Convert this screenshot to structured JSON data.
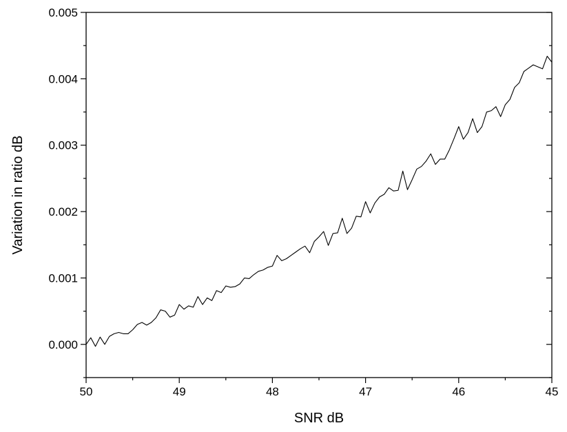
{
  "chart_data": {
    "type": "line",
    "title": "",
    "xlabel": "SNR dB",
    "ylabel": "Variation in ratio dB",
    "xlim": [
      50,
      45
    ],
    "ylim": [
      -0.0005,
      0.005
    ],
    "x_reversed": true,
    "grid": false,
    "legend": "none",
    "x_ticks": [
      50,
      49,
      48,
      47,
      46,
      45
    ],
    "x_tick_labels": [
      "50",
      "49",
      "48",
      "47",
      "46",
      "45"
    ],
    "y_ticks": [
      0.0,
      0.001,
      0.002,
      0.003,
      0.004,
      0.005
    ],
    "y_tick_labels": [
      "0.000",
      "0.001",
      "0.002",
      "0.003",
      "0.004",
      "0.005"
    ],
    "line_color": "#000000",
    "series": [
      {
        "x": [
          50.0,
          49.95,
          49.9,
          49.85,
          49.8,
          49.75,
          49.7,
          49.65,
          49.6,
          49.55,
          49.5,
          49.45,
          49.4,
          49.35,
          49.3,
          49.25,
          49.2,
          49.15,
          49.1,
          49.05,
          49.0,
          48.95,
          48.9,
          48.85,
          48.8,
          48.75,
          48.7,
          48.65,
          48.6,
          48.55,
          48.5,
          48.45,
          48.4,
          48.35,
          48.3,
          48.25,
          48.2,
          48.15,
          48.1,
          48.05,
          48.0,
          47.95,
          47.9,
          47.85,
          47.8,
          47.75,
          47.7,
          47.65,
          47.6,
          47.55,
          47.5,
          47.45,
          47.4,
          47.35,
          47.3,
          47.25,
          47.2,
          47.15,
          47.1,
          47.05,
          47.0,
          46.95,
          46.9,
          46.85,
          46.8,
          46.75,
          46.7,
          46.65,
          46.6,
          46.55,
          46.5,
          46.45,
          46.4,
          46.35,
          46.3,
          46.25,
          46.2,
          46.15,
          46.1,
          46.05,
          46.0,
          45.95,
          45.9,
          45.85,
          45.8,
          45.75,
          45.7,
          45.65,
          45.6,
          45.55,
          45.5,
          45.45,
          45.4,
          45.35,
          45.3,
          45.25,
          45.2,
          45.15,
          45.1,
          45.05,
          45.0
        ],
        "values": [
          0.0,
          0.0001,
          -3e-05,
          0.00011,
          0.0,
          0.00012,
          0.00016,
          0.00018,
          0.00016,
          0.00016,
          0.00022,
          0.0003,
          0.00033,
          0.00029,
          0.00033,
          0.0004,
          0.00052,
          0.0005,
          0.00041,
          0.00044,
          0.0006,
          0.00053,
          0.00058,
          0.00056,
          0.00072,
          0.0006,
          0.0007,
          0.00066,
          0.00081,
          0.00078,
          0.00088,
          0.00086,
          0.00087,
          0.00091,
          0.001,
          0.00099,
          0.00105,
          0.0011,
          0.00112,
          0.00116,
          0.00118,
          0.00134,
          0.00126,
          0.00129,
          0.00134,
          0.00139,
          0.00144,
          0.00148,
          0.00138,
          0.00155,
          0.00162,
          0.0017,
          0.00149,
          0.00167,
          0.00168,
          0.0019,
          0.00167,
          0.00175,
          0.00193,
          0.00192,
          0.00215,
          0.00198,
          0.00213,
          0.00222,
          0.00226,
          0.00236,
          0.00231,
          0.00232,
          0.00261,
          0.00233,
          0.00248,
          0.00264,
          0.00268,
          0.00276,
          0.00287,
          0.00271,
          0.00279,
          0.00279,
          0.00293,
          0.0031,
          0.00328,
          0.00309,
          0.00319,
          0.0034,
          0.00319,
          0.00328,
          0.0035,
          0.00352,
          0.00358,
          0.00343,
          0.00361,
          0.00369,
          0.00387,
          0.00394,
          0.00411,
          0.00416,
          0.00421,
          0.00418,
          0.00415,
          0.00434,
          0.00425
        ]
      }
    ]
  }
}
